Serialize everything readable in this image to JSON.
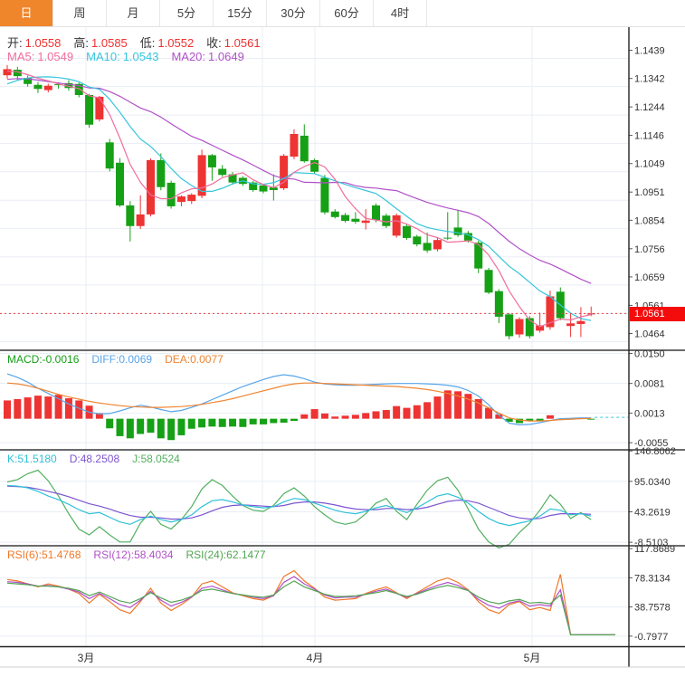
{
  "tabs": {
    "items": [
      {
        "label": "日"
      },
      {
        "label": "周"
      },
      {
        "label": "月"
      },
      {
        "label": "5分"
      },
      {
        "label": "15分"
      },
      {
        "label": "30分"
      },
      {
        "label": "60分"
      },
      {
        "label": "4时"
      }
    ]
  },
  "main_header": {
    "open_label": "开:",
    "open": "1.0558",
    "high_label": "高:",
    "high": "1.0585",
    "low_label": "低:",
    "low": "1.0552",
    "close_label": "收:",
    "close": "1.0561",
    "ma5_label": "MA5:",
    "ma5": "1.0549",
    "ma10_label": "MA10:",
    "ma10": "1.0543",
    "ma20_label": "MA20:",
    "ma20": "1.0649"
  },
  "macd_header": {
    "macd_label": "MACD:",
    "macd": "-0.0016",
    "diff_label": "DIFF:",
    "diff": "0.0069",
    "dea_label": "DEA:",
    "dea": "0.0077"
  },
  "kdj_header": {
    "k_label": "K:",
    "k": "51.5180",
    "d_label": "D:",
    "d": "48.2508",
    "j_label": "J:",
    "j": "58.0524"
  },
  "rsi_header": {
    "r6_label": "RSI(6):",
    "r6": "51.4768",
    "r12_label": "RSI(12):",
    "r12": "58.4034",
    "r24_label": "RSI(24):",
    "r24": "62.1477"
  },
  "price_badge": "1.0561",
  "x_axis": {
    "labels": [
      "3月",
      "4月",
      "5月"
    ]
  },
  "colors": {
    "up": "#ee3333",
    "down": "#16a016",
    "grid": "#e9eef5",
    "ma5": "#f06d9c",
    "ma10": "#35c5dc",
    "ma20": "#b050c8",
    "diff": "#58a5e8",
    "dea": "#ef8432",
    "k": "#30c0d8",
    "d": "#7d55d0",
    "j": "#52b060",
    "rsi6": "#f07828",
    "rsi12": "#b050c8",
    "rsi24": "#52a552",
    "price_line": "#f23b3b",
    "badge": "#f40b0b",
    "axis_text": "#333333"
  },
  "chart_data": {
    "type": "candlestick+indicators",
    "x_gridlines": [
      95,
      290,
      348,
      588
    ],
    "x_tick_x": [
      95,
      348,
      588
    ],
    "main": {
      "yticks": [
        "1.1439",
        "1.1342",
        "1.1244",
        "1.1146",
        "1.1049",
        "1.0951",
        "1.0854",
        "1.0756",
        "1.0659",
        "1.0561",
        "1.0464"
      ],
      "tick_values": [
        1.1439,
        1.1342,
        1.1244,
        1.1146,
        1.1049,
        1.0951,
        1.0854,
        1.0756,
        1.0659,
        1.0561,
        1.0464
      ],
      "ylim": [
        1.04345,
        1.15466
      ],
      "price_line": 1.0561,
      "pre_closes": [
        1.065,
        1.068,
        1.072,
        1.076,
        1.08,
        1.084,
        1.088,
        1.092,
        1.096,
        1.1,
        1.104,
        1.108,
        1.112,
        1.117,
        1.122,
        1.127,
        1.132,
        1.137,
        1.142,
        1.145,
        1.1445,
        1.143,
        1.14,
        1.137,
        1.133,
        1.129,
        1.1255,
        1.127,
        1.13,
        1.134,
        1.137,
        1.139,
        1.14,
        1.1395,
        1.139
      ],
      "candles": [
        [
          1.1381,
          1.1416,
          1.137,
          1.1402
        ],
        [
          1.14,
          1.141,
          1.1365,
          1.1378
        ],
        [
          1.1372,
          1.138,
          1.1342,
          1.1351
        ],
        [
          1.1348,
          1.1358,
          1.132,
          1.1334
        ],
        [
          1.133,
          1.1352,
          1.1322,
          1.1345
        ],
        [
          1.135,
          1.1357,
          1.1335,
          1.1347
        ],
        [
          1.1354,
          1.1364,
          1.1328,
          1.1337
        ],
        [
          1.1351,
          1.1356,
          1.1305,
          1.1313
        ],
        [
          1.1313,
          1.1317,
          1.12,
          1.1211
        ],
        [
          1.1229,
          1.131,
          1.1222,
          1.1307
        ],
        [
          1.115,
          1.1162,
          1.105,
          1.106
        ],
        [
          1.108,
          1.1096,
          1.0928,
          1.0933
        ],
        [
          1.0933,
          1.0948,
          1.0809,
          1.0862
        ],
        [
          1.0862,
          1.0968,
          1.0852,
          1.0902
        ],
        [
          1.0902,
          1.1095,
          1.0895,
          1.1089
        ],
        [
          1.1089,
          1.1112,
          1.0985,
          1.0996
        ],
        [
          1.1011,
          1.1018,
          1.0922,
          1.093
        ],
        [
          1.0945,
          1.0968,
          1.093,
          1.0964
        ],
        [
          1.0948,
          1.0975,
          1.0938,
          1.097
        ],
        [
          1.0966,
          1.1125,
          1.0958,
          1.1106
        ],
        [
          1.1106,
          1.111,
          1.1018,
          1.1064
        ],
        [
          1.1059,
          1.1072,
          1.1032,
          1.1038
        ],
        [
          1.104,
          1.1048,
          1.1005,
          1.1012
        ],
        [
          1.1028,
          1.1034,
          1.1,
          1.1007
        ],
        [
          1.1012,
          1.1017,
          1.098,
          1.0986
        ],
        [
          1.1002,
          1.1007,
          1.0975,
          1.0981
        ],
        [
          1.0995,
          1.104,
          1.095,
          1.0986
        ],
        [
          1.0992,
          1.111,
          1.0986,
          1.1104
        ],
        [
          1.1101,
          1.1195,
          1.1092,
          1.1179
        ],
        [
          1.1173,
          1.1212,
          1.108,
          1.1085
        ],
        [
          1.1089,
          1.1094,
          1.1042,
          1.1049
        ],
        [
          1.1028,
          1.1038,
          1.0902,
          1.0909
        ],
        [
          1.0912,
          1.092,
          1.0888,
          1.0893
        ],
        [
          1.09,
          1.0907,
          1.0874,
          1.088
        ],
        [
          1.0887,
          1.091,
          1.087,
          1.0877
        ],
        [
          1.0873,
          1.092,
          1.085,
          1.0881
        ],
        [
          1.0933,
          1.094,
          1.0875,
          1.0883
        ],
        [
          1.0898,
          1.0905,
          1.0855,
          1.0862
        ],
        [
          1.0829,
          1.0905,
          1.0822,
          1.0899
        ],
        [
          1.0862,
          1.0868,
          1.0815,
          1.0821
        ],
        [
          1.0826,
          1.0832,
          1.0792,
          1.0799
        ],
        [
          1.0804,
          1.084,
          1.077,
          1.0778
        ],
        [
          1.0782,
          1.0822,
          1.0775,
          1.0814
        ],
        [
          1.0822,
          1.091,
          1.0814,
          1.082
        ],
        [
          1.0857,
          1.0918,
          1.0825,
          1.0831
        ],
        [
          1.0838,
          1.0845,
          1.0805,
          1.0812
        ],
        [
          1.0805,
          1.0812,
          1.07,
          1.0716
        ],
        [
          1.0711,
          1.0718,
          1.0628,
          1.0633
        ],
        [
          1.0638,
          1.0645,
          1.0528,
          1.055
        ],
        [
          1.0558,
          1.0562,
          1.0472,
          1.0483
        ],
        [
          1.0489,
          1.0548,
          1.0478,
          1.0542
        ],
        [
          1.0545,
          1.0552,
          1.0475,
          1.0483
        ],
        [
          1.0502,
          1.0564,
          1.0495,
          1.052
        ],
        [
          1.0514,
          1.064,
          1.0505,
          1.062
        ],
        [
          1.0636,
          1.0651,
          1.0538,
          1.0545
        ],
        [
          1.0518,
          1.056,
          1.048,
          1.0527
        ],
        [
          1.0525,
          1.0583,
          1.048,
          1.0535
        ],
        [
          1.0558,
          1.0585,
          1.0552,
          1.0561
        ]
      ]
    },
    "macd": {
      "yticks": [
        "0.0150",
        "0.0081",
        "0.0013",
        "-0.0055"
      ],
      "tick_values": [
        0.015,
        0.0081,
        0.0013,
        -0.0055
      ],
      "ylim": [
        -0.00693,
        0.01551
      ],
      "hist": [
        0.0042,
        0.0045,
        0.0049,
        0.0053,
        0.0051,
        0.0055,
        0.0047,
        0.0042,
        0.003,
        0.0013,
        -0.0022,
        -0.004,
        -0.0045,
        -0.0035,
        -0.0032,
        -0.0045,
        -0.0049,
        -0.0038,
        -0.0023,
        -0.002,
        -0.0018,
        -0.0019,
        -0.0018,
        -0.0019,
        -0.0013,
        -0.0013,
        -0.001,
        -0.0009,
        -0.0005,
        0.001,
        0.0022,
        0.0012,
        0.0005,
        0.0007,
        0.0009,
        0.0013,
        0.0017,
        0.002,
        0.0029,
        0.0025,
        0.0031,
        0.0038,
        0.0051,
        0.0065,
        0.0063,
        0.0057,
        0.0045,
        0.0025,
        0.001,
        -0.0007,
        -0.001,
        -0.0005,
        -0.0004,
        0.0008,
        -0.0003,
        -0.0001,
        0.0002,
        -0.0001
      ],
      "diff": [
        0.0103,
        0.0095,
        0.0084,
        0.007,
        0.0058,
        0.0046,
        0.0034,
        0.0024,
        0.0015,
        0.0011,
        0.0012,
        0.0018,
        0.0025,
        0.0031,
        0.0027,
        0.0021,
        0.0016,
        0.0019,
        0.0026,
        0.0034,
        0.0044,
        0.0054,
        0.0064,
        0.0074,
        0.0082,
        0.009,
        0.0097,
        0.0101,
        0.0098,
        0.0092,
        0.0084,
        0.008,
        0.0078,
        0.0077,
        0.0077,
        0.0078,
        0.0079,
        0.008,
        0.0081,
        0.0081,
        0.0081,
        0.008,
        0.0079,
        0.0077,
        0.0073,
        0.0065,
        0.0052,
        0.0032,
        0.0008,
        -0.001,
        -0.0014,
        -0.0013,
        -0.0009,
        -0.0004,
        0.0,
        0.0001,
        0.0002,
        0.0002
      ],
      "dea": [
        0.0082,
        0.008,
        0.0076,
        0.007,
        0.0063,
        0.0056,
        0.005,
        0.0045,
        0.004,
        0.0036,
        0.0033,
        0.003,
        0.0028,
        0.0027,
        0.0026,
        0.0026,
        0.0027,
        0.0028,
        0.003,
        0.0033,
        0.0037,
        0.0041,
        0.0046,
        0.0052,
        0.0058,
        0.0064,
        0.007,
        0.0076,
        0.008,
        0.0082,
        0.0082,
        0.0081,
        0.008,
        0.0079,
        0.0078,
        0.0077,
        0.0076,
        0.0075,
        0.0074,
        0.0072,
        0.007,
        0.0067,
        0.0063,
        0.0058,
        0.0052,
        0.0045,
        0.0036,
        0.0025,
        0.0013,
        0.0002,
        -0.0003,
        -0.0005,
        -0.0005,
        -0.0004,
        -0.0002,
        -0.0001,
        0.0,
        0.0001
      ]
    },
    "kdj": {
      "yticks": [
        "146.8062",
        "95.0340",
        "43.2619",
        "-8.5103"
      ],
      "tick_values": [
        146.8062,
        95.034,
        43.2619,
        -8.5103
      ],
      "ylim": [
        -12.9,
        147.1
      ],
      "k": [
        88,
        87,
        84,
        78,
        70,
        64,
        56,
        47,
        40,
        42,
        34,
        26,
        22,
        30,
        36,
        30,
        26,
        30,
        38,
        52,
        62,
        64,
        60,
        55,
        52,
        50,
        52,
        60,
        66,
        64,
        58,
        52,
        46,
        42,
        40,
        44,
        50,
        54,
        48,
        42,
        50,
        60,
        70,
        74,
        68,
        58,
        44,
        32,
        24,
        20,
        24,
        28,
        36,
        48,
        46,
        38,
        40,
        36
      ],
      "d": [
        87,
        86,
        85,
        82,
        78,
        74,
        69,
        63,
        57,
        53,
        48,
        42,
        37,
        34,
        34,
        33,
        31,
        31,
        33,
        38,
        45,
        51,
        54,
        55,
        54,
        53,
        52,
        54,
        58,
        60,
        60,
        58,
        55,
        51,
        48,
        47,
        47,
        49,
        49,
        47,
        48,
        51,
        56,
        61,
        63,
        62,
        58,
        51,
        44,
        37,
        33,
        31,
        32,
        37,
        40,
        40,
        40,
        39
      ],
      "j": [
        94,
        98,
        108,
        114,
        96,
        70,
        40,
        14,
        4,
        18,
        4,
        -8,
        -8,
        24,
        44,
        22,
        14,
        30,
        52,
        82,
        98,
        88,
        70,
        54,
        46,
        44,
        54,
        74,
        84,
        70,
        52,
        38,
        26,
        22,
        26,
        40,
        58,
        66,
        44,
        30,
        56,
        80,
        96,
        102,
        80,
        48,
        14,
        -8,
        -18,
        -12,
        8,
        24,
        46,
        72,
        56,
        32,
        42,
        30
      ]
    },
    "rsi": {
      "yticks": [
        "117.8689",
        "78.3134",
        "38.7578",
        "-0.7977"
      ],
      "tick_values": [
        117.8689,
        78.3134,
        38.7578,
        -0.7977
      ],
      "ylim": [
        -14.5,
        120.5
      ],
      "flat_extend_x": 680,
      "rsi6": [
        76,
        74,
        70,
        66,
        70,
        67,
        63,
        57,
        44,
        56,
        46,
        35,
        30,
        46,
        64,
        44,
        34,
        42,
        52,
        70,
        74,
        66,
        58,
        54,
        50,
        48,
        54,
        80,
        88,
        74,
        64,
        52,
        48,
        49,
        50,
        57,
        62,
        66,
        58,
        50,
        58,
        66,
        74,
        78,
        72,
        62,
        46,
        35,
        30,
        42,
        46,
        35,
        38,
        34,
        83,
        1,
        1,
        1
      ],
      "rsi12": [
        73,
        72,
        70,
        67,
        68,
        66,
        63,
        59,
        50,
        57,
        50,
        42,
        38,
        48,
        60,
        48,
        40,
        45,
        52,
        64,
        67,
        62,
        57,
        55,
        52,
        50,
        54,
        72,
        80,
        70,
        63,
        55,
        51,
        52,
        52,
        56,
        60,
        63,
        57,
        52,
        57,
        63,
        68,
        72,
        68,
        61,
        49,
        41,
        37,
        44,
        47,
        40,
        42,
        40,
        62,
        1,
        1,
        1
      ],
      "rsi24": [
        71,
        70,
        69,
        67,
        67,
        66,
        64,
        61,
        54,
        59,
        53,
        47,
        44,
        50,
        58,
        51,
        45,
        48,
        53,
        61,
        63,
        60,
        57,
        55,
        53,
        52,
        55,
        66,
        74,
        66,
        61,
        56,
        53,
        53,
        54,
        56,
        58,
        61,
        57,
        53,
        56,
        61,
        65,
        68,
        65,
        61,
        52,
        46,
        43,
        47,
        49,
        44,
        45,
        43,
        55,
        1,
        1,
        1
      ]
    }
  }
}
